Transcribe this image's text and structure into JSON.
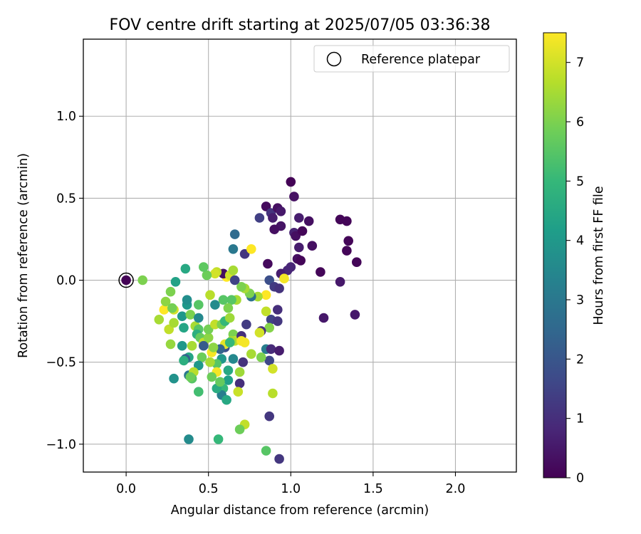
{
  "chart_data": {
    "type": "scatter",
    "title": "FOV centre drift starting at 2025/07/05 03:36:38",
    "xlabel": "Angular distance from reference (arcmin)",
    "ylabel": "Rotation from reference (arcmin)",
    "xlim": [
      -0.26,
      2.37
    ],
    "ylim": [
      -1.17,
      1.47
    ],
    "xticks": [
      0.0,
      0.5,
      1.0,
      1.5,
      2.0
    ],
    "xtick_labels": [
      "0.0",
      "0.5",
      "1.0",
      "1.5",
      "2.0"
    ],
    "yticks": [
      -1.0,
      -0.5,
      0.0,
      0.5,
      1.0
    ],
    "ytick_labels": [
      "−1.0",
      "−0.5",
      "0.0",
      "0.5",
      "1.0"
    ],
    "grid": true,
    "legend": {
      "position": "top-right",
      "label": "Reference platepar"
    },
    "reference_point": {
      "x": 0.0,
      "y": 0.0
    },
    "colorbar": {
      "label": "Hours from first FF file",
      "colormap": "viridis",
      "range": [
        0,
        7.5
      ],
      "ticks": [
        "0",
        "1",
        "2",
        "3",
        "4",
        "5",
        "6",
        "7"
      ]
    },
    "colors": {
      "v0": "#440154",
      "v1": "#482878",
      "v2": "#3e4a89",
      "v3": "#31688e",
      "v4": "#26828e",
      "v5": "#1f9e89",
      "v6": "#35b779",
      "v7": "#6ece58",
      "v8": "#b5de2b",
      "v9": "#fde725"
    },
    "points": [
      [
        0.0,
        0.0,
        0.05
      ],
      [
        1.0,
        0.6,
        0.05
      ],
      [
        1.02,
        0.51,
        0.35
      ],
      [
        0.85,
        0.45,
        0.2
      ],
      [
        0.88,
        0.41,
        1.1
      ],
      [
        0.92,
        0.44,
        0.3
      ],
      [
        0.94,
        0.42,
        0.5
      ],
      [
        0.81,
        0.38,
        1.4
      ],
      [
        0.89,
        0.38,
        0.6
      ],
      [
        1.05,
        0.38,
        0.6
      ],
      [
        1.11,
        0.36,
        0.3
      ],
      [
        0.94,
        0.33,
        0.4
      ],
      [
        0.9,
        0.31,
        0.3
      ],
      [
        1.02,
        0.29,
        0.7
      ],
      [
        1.03,
        0.27,
        0.3
      ],
      [
        1.07,
        0.3,
        0.1
      ],
      [
        1.3,
        0.37,
        0.1
      ],
      [
        1.34,
        0.36,
        0.1
      ],
      [
        1.35,
        0.24,
        0.1
      ],
      [
        1.34,
        0.18,
        0.1
      ],
      [
        1.4,
        0.11,
        0.1
      ],
      [
        1.13,
        0.21,
        0.3
      ],
      [
        1.05,
        0.2,
        0.6
      ],
      [
        0.66,
        0.28,
        2.6
      ],
      [
        0.65,
        0.19,
        3.0
      ],
      [
        0.72,
        0.16,
        1.2
      ],
      [
        0.76,
        0.19,
        7.5
      ],
      [
        1.0,
        0.08,
        0.8
      ],
      [
        1.04,
        0.13,
        0.3
      ],
      [
        1.06,
        0.12,
        0.1
      ],
      [
        0.98,
        0.06,
        0.8
      ],
      [
        0.94,
        0.04,
        0.6
      ],
      [
        0.96,
        0.01,
        7.4
      ],
      [
        0.87,
        0.0,
        1.8
      ],
      [
        0.9,
        -0.04,
        1.3
      ],
      [
        0.93,
        -0.05,
        1.1
      ],
      [
        0.86,
        0.1,
        0.2
      ],
      [
        1.18,
        0.05,
        0.1
      ],
      [
        1.3,
        -0.01,
        0.5
      ],
      [
        1.2,
        -0.23,
        0.5
      ],
      [
        1.39,
        -0.21,
        0.5
      ],
      [
        0.92,
        -0.18,
        1.0
      ],
      [
        0.88,
        -0.24,
        1.5
      ],
      [
        0.92,
        -0.25,
        1.2
      ],
      [
        0.85,
        -0.19,
        6.8
      ],
      [
        0.87,
        -0.29,
        6.1
      ],
      [
        0.82,
        -0.31,
        1.1
      ],
      [
        0.81,
        -0.32,
        7.0
      ],
      [
        0.85,
        -0.42,
        3.2
      ],
      [
        0.88,
        -0.42,
        0.9
      ],
      [
        0.93,
        -0.43,
        0.6
      ],
      [
        0.87,
        -0.49,
        1.6
      ],
      [
        0.82,
        -0.47,
        6.0
      ],
      [
        0.89,
        -0.54,
        7.0
      ],
      [
        0.89,
        -0.69,
        6.7
      ],
      [
        0.87,
        -0.83,
        1.2
      ],
      [
        0.85,
        -1.04,
        5.5
      ],
      [
        0.93,
        -1.09,
        1.2
      ],
      [
        0.72,
        -0.88,
        6.8
      ],
      [
        0.69,
        -0.91,
        5.8
      ],
      [
        0.85,
        -0.09,
        7.5
      ],
      [
        0.8,
        -0.1,
        6.5
      ],
      [
        0.76,
        -0.1,
        2.8
      ],
      [
        0.75,
        -0.08,
        6.0
      ],
      [
        0.72,
        -0.05,
        6.5
      ],
      [
        0.7,
        -0.04,
        6.0
      ],
      [
        0.67,
        -0.12,
        6.5
      ],
      [
        0.64,
        -0.12,
        5.5
      ],
      [
        0.61,
        0.02,
        7.5
      ],
      [
        0.59,
        0.04,
        0.3
      ],
      [
        0.63,
        0.03,
        7.0
      ],
      [
        0.65,
        0.06,
        6.5
      ],
      [
        0.66,
        0.0,
        1.5
      ],
      [
        0.55,
        0.05,
        6.8
      ],
      [
        0.54,
        0.04,
        7.0
      ],
      [
        0.49,
        0.03,
        5.8
      ],
      [
        0.47,
        0.08,
        5.6
      ],
      [
        0.36,
        0.07,
        4.5
      ],
      [
        0.3,
        -0.01,
        4.3
      ],
      [
        0.27,
        -0.07,
        6.0
      ],
      [
        0.1,
        0.0,
        6.0
      ],
      [
        0.2,
        -0.24,
        6.5
      ],
      [
        0.23,
        -0.18,
        7.5
      ],
      [
        0.24,
        -0.13,
        6.2
      ],
      [
        0.26,
        -0.3,
        6.8
      ],
      [
        0.29,
        -0.26,
        6.5
      ],
      [
        0.29,
        -0.18,
        7.0
      ],
      [
        0.28,
        -0.17,
        5.9
      ],
      [
        0.27,
        -0.39,
        6.3
      ],
      [
        0.29,
        -0.6,
        3.8
      ],
      [
        0.34,
        -0.22,
        4.0
      ],
      [
        0.35,
        -0.29,
        4.4
      ],
      [
        0.37,
        -0.15,
        4.0
      ],
      [
        0.37,
        -0.12,
        3.7
      ],
      [
        0.39,
        -0.21,
        6.0
      ],
      [
        0.42,
        -0.28,
        6.5
      ],
      [
        0.44,
        -0.23,
        3.5
      ],
      [
        0.44,
        -0.15,
        5.5
      ],
      [
        0.44,
        -0.3,
        5.5
      ],
      [
        0.43,
        -0.33,
        4.7
      ],
      [
        0.45,
        -0.35,
        5.7
      ],
      [
        0.47,
        -0.38,
        6.8
      ],
      [
        0.5,
        -0.35,
        6.2
      ],
      [
        0.5,
        -0.3,
        5.9
      ],
      [
        0.51,
        -0.09,
        6.7
      ],
      [
        0.54,
        -0.15,
        3.6
      ],
      [
        0.54,
        -0.27,
        6.8
      ],
      [
        0.58,
        -0.27,
        6.0
      ],
      [
        0.59,
        -0.12,
        5.5
      ],
      [
        0.6,
        -0.25,
        5.0
      ],
      [
        0.63,
        -0.23,
        6.4
      ],
      [
        0.62,
        -0.17,
        6.0
      ],
      [
        0.65,
        -0.33,
        6.0
      ],
      [
        0.66,
        -0.37,
        6.8
      ],
      [
        0.7,
        -0.34,
        1.0
      ],
      [
        0.73,
        -0.27,
        1.3
      ],
      [
        0.72,
        -0.38,
        7.4
      ],
      [
        0.76,
        -0.45,
        6.5
      ],
      [
        0.71,
        -0.5,
        1.1
      ],
      [
        0.69,
        -0.56,
        6.4
      ],
      [
        0.69,
        -0.63,
        1.0
      ],
      [
        0.68,
        -0.68,
        6.9
      ],
      [
        0.65,
        -0.48,
        3.5
      ],
      [
        0.62,
        -0.55,
        4.5
      ],
      [
        0.62,
        -0.61,
        4.2
      ],
      [
        0.59,
        -0.66,
        5.0
      ],
      [
        0.58,
        -0.7,
        3.2
      ],
      [
        0.61,
        -0.73,
        4.5
      ],
      [
        0.6,
        -0.41,
        1.8
      ],
      [
        0.6,
        -0.39,
        7.2
      ],
      [
        0.57,
        -0.42,
        2.4
      ],
      [
        0.58,
        -0.48,
        4.0
      ],
      [
        0.55,
        -0.51,
        5.5
      ],
      [
        0.55,
        -0.56,
        7.4
      ],
      [
        0.52,
        -0.44,
        7.4
      ],
      [
        0.51,
        -0.5,
        6.5
      ],
      [
        0.52,
        -0.59,
        5.8
      ],
      [
        0.53,
        -0.41,
        6.2
      ],
      [
        0.47,
        -0.4,
        2.1
      ],
      [
        0.46,
        -0.47,
        5.8
      ],
      [
        0.44,
        -0.52,
        4.0
      ],
      [
        0.4,
        -0.4,
        6.5
      ],
      [
        0.38,
        -0.47,
        4.4
      ],
      [
        0.36,
        -0.48,
        2.3
      ],
      [
        0.35,
        -0.49,
        4.7
      ],
      [
        0.38,
        -0.58,
        3.0
      ],
      [
        0.41,
        -0.56,
        6.7
      ],
      [
        0.4,
        -0.6,
        5.5
      ],
      [
        0.39,
        -0.59,
        5.8
      ],
      [
        0.44,
        -0.68,
        5.2
      ],
      [
        0.56,
        -0.97,
        5.0
      ],
      [
        0.38,
        -0.97,
        3.6
      ],
      [
        0.55,
        -0.66,
        4.6
      ],
      [
        0.57,
        -0.62,
        5.7
      ],
      [
        0.64,
        -0.37,
        6.5
      ],
      [
        0.7,
        -0.37,
        7.4
      ],
      [
        0.63,
        -0.38,
        5.0
      ],
      [
        0.34,
        -0.4,
        4.0
      ]
    ]
  }
}
